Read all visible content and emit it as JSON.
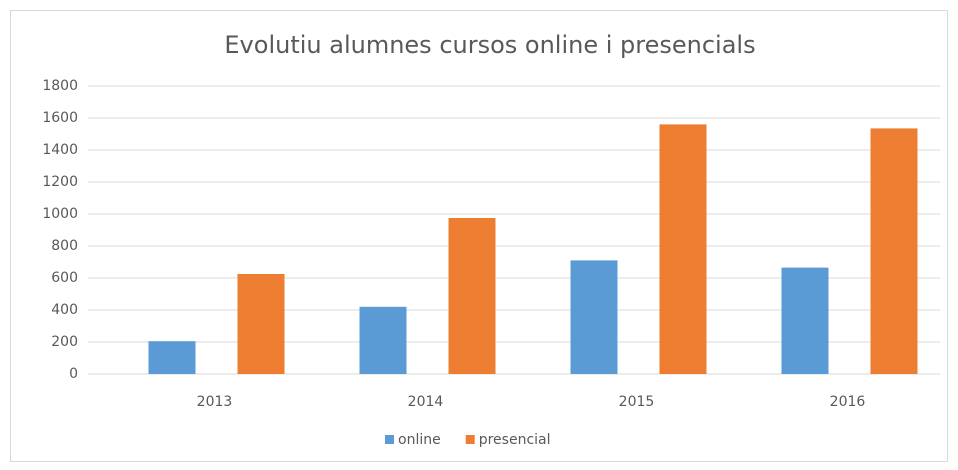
{
  "chart_data": {
    "type": "bar",
    "title": "Evolutiu alumnes cursos online i presencials",
    "categories": [
      "2013",
      "2014",
      "2015",
      "2016"
    ],
    "series": [
      {
        "name": "online",
        "color": "#5b9bd5",
        "values": [
          205,
          420,
          710,
          665
        ]
      },
      {
        "name": "presencial",
        "color": "#ed7d31",
        "values": [
          625,
          975,
          1560,
          1535
        ]
      }
    ],
    "ylim": [
      0,
      1800
    ],
    "yticks": [
      0,
      200,
      400,
      600,
      800,
      1000,
      1200,
      1400,
      1600,
      1800
    ],
    "grid": true,
    "legend": "bottom"
  }
}
